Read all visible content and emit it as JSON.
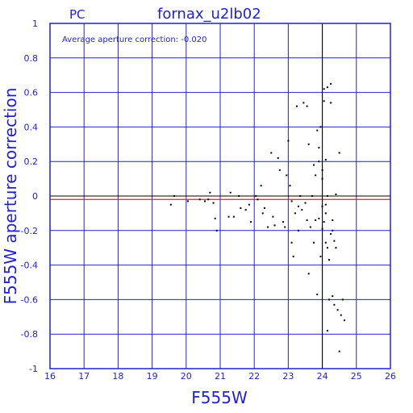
{
  "chart_data": {
    "type": "scatter",
    "title": "fornax_u2lb02",
    "corner_label": "PC",
    "annotation": "Average aperture correction: -0.020",
    "xlabel": "F555W",
    "ylabel": "F555W aperture correction",
    "xlim": [
      16,
      26
    ],
    "ylim": [
      -1,
      1
    ],
    "x_ticks": [
      16,
      17,
      18,
      19,
      20,
      21,
      22,
      23,
      24,
      25,
      26
    ],
    "y_ticks": [
      1,
      0.8,
      0.6,
      0.4,
      0.2,
      0,
      -0.2,
      -0.4,
      -0.6,
      -0.8,
      -1
    ],
    "y_tick_labels": [
      "1",
      "0.8",
      "0.6",
      "0.4",
      "0.2",
      "0",
      "-0.2",
      "-0.4",
      "-0.6",
      "-0.8",
      "-1"
    ],
    "grid": true,
    "average_line": {
      "value": -0.02,
      "color": "#dd2222"
    },
    "zero_line": {
      "value": 0,
      "color": "#000000"
    },
    "vertical_line": {
      "value": 24,
      "color": "#000000"
    },
    "axis_color": "#2222cc",
    "grid_color": "#2222cc",
    "point_color": "#000000",
    "points": [
      [
        19.55,
        -0.05
      ],
      [
        19.65,
        0.0
      ],
      [
        20.05,
        -0.03
      ],
      [
        20.4,
        -0.02
      ],
      [
        20.55,
        -0.03
      ],
      [
        20.65,
        -0.02
      ],
      [
        20.7,
        0.02
      ],
      [
        20.8,
        -0.04
      ],
      [
        20.85,
        -0.13
      ],
      [
        20.9,
        -0.2
      ],
      [
        21.3,
        0.02
      ],
      [
        21.25,
        -0.12
      ],
      [
        21.4,
        -0.12
      ],
      [
        21.55,
        0.0
      ],
      [
        21.6,
        -0.07
      ],
      [
        21.75,
        -0.08
      ],
      [
        21.85,
        -0.05
      ],
      [
        21.9,
        -0.15
      ],
      [
        22.05,
        0.0
      ],
      [
        22.1,
        -0.02
      ],
      [
        22.2,
        0.06
      ],
      [
        22.25,
        -0.1
      ],
      [
        22.3,
        -0.07
      ],
      [
        22.4,
        -0.18
      ],
      [
        22.5,
        0.25
      ],
      [
        22.55,
        -0.12
      ],
      [
        22.6,
        -0.17
      ],
      [
        22.7,
        0.22
      ],
      [
        22.75,
        0.15
      ],
      [
        22.85,
        -0.15
      ],
      [
        22.9,
        -0.18
      ],
      [
        22.95,
        0.12
      ],
      [
        23.0,
        0.32
      ],
      [
        23.05,
        0.06
      ],
      [
        23.1,
        -0.03
      ],
      [
        23.1,
        -0.27
      ],
      [
        23.15,
        -0.35
      ],
      [
        23.2,
        -0.1
      ],
      [
        23.25,
        0.52
      ],
      [
        23.3,
        -0.2
      ],
      [
        23.3,
        -0.06
      ],
      [
        23.35,
        0.0
      ],
      [
        23.4,
        -0.08
      ],
      [
        23.45,
        0.54
      ],
      [
        23.5,
        -0.04
      ],
      [
        23.55,
        0.52
      ],
      [
        23.55,
        -0.14
      ],
      [
        23.6,
        -0.45
      ],
      [
        23.6,
        0.3
      ],
      [
        23.65,
        -0.18
      ],
      [
        23.7,
        0.0
      ],
      [
        23.75,
        0.18
      ],
      [
        23.75,
        -0.27
      ],
      [
        23.8,
        0.12
      ],
      [
        23.8,
        -0.14
      ],
      [
        23.85,
        0.38
      ],
      [
        23.85,
        -0.57
      ],
      [
        23.9,
        -0.13
      ],
      [
        23.9,
        0.28
      ],
      [
        23.9,
        0.2
      ],
      [
        23.95,
        0.4
      ],
      [
        23.95,
        -0.35
      ],
      [
        24.0,
        0.15
      ],
      [
        24.0,
        0.1
      ],
      [
        24.0,
        -0.06
      ],
      [
        24.0,
        -0.19
      ],
      [
        24.05,
        0.55
      ],
      [
        24.05,
        0.62
      ],
      [
        24.05,
        -0.15
      ],
      [
        24.1,
        0.21
      ],
      [
        24.1,
        -0.05
      ],
      [
        24.1,
        -0.1
      ],
      [
        24.1,
        -0.27
      ],
      [
        24.15,
        0.63
      ],
      [
        24.15,
        0.0
      ],
      [
        24.15,
        -0.3
      ],
      [
        24.15,
        -0.78
      ],
      [
        24.2,
        -0.37
      ],
      [
        24.2,
        -0.6
      ],
      [
        24.25,
        0.54
      ],
      [
        24.25,
        0.65
      ],
      [
        24.25,
        -0.22
      ],
      [
        24.3,
        -0.14
      ],
      [
        24.3,
        -0.2
      ],
      [
        24.3,
        -0.58
      ],
      [
        24.35,
        -0.26
      ],
      [
        24.35,
        -0.63
      ],
      [
        24.4,
        0.01
      ],
      [
        24.4,
        -0.3
      ],
      [
        24.45,
        -0.66
      ],
      [
        24.5,
        0.25
      ],
      [
        24.5,
        -0.9
      ],
      [
        24.55,
        -0.69
      ],
      [
        24.6,
        -0.6
      ],
      [
        24.65,
        -0.72
      ]
    ]
  }
}
